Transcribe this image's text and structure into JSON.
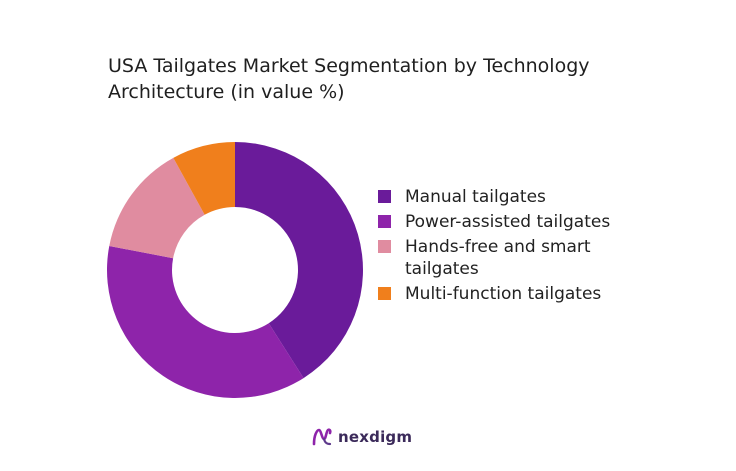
{
  "chart_data": {
    "type": "pie",
    "title": "USA Tailgates Market Segmentation by Technology Architecture (in value %)",
    "title_lines": [
      "USA Tailgates Market Segmentation by Technology",
      "Architecture (in value %)"
    ],
    "donut": true,
    "categories": [
      "Manual tailgates",
      "Power-assisted tailgates",
      "Hands-free and smart tailgates",
      "Multi-function tailgates"
    ],
    "values": [
      41,
      37,
      14,
      8
    ],
    "colors": [
      "#6a1b9a",
      "#8e24aa",
      "#e08ca0",
      "#f07f1c"
    ],
    "legend_position": "right"
  },
  "brand": {
    "name": "nexdigm",
    "icon": "nexdigm-logo-icon",
    "color": "#8e24aa"
  }
}
